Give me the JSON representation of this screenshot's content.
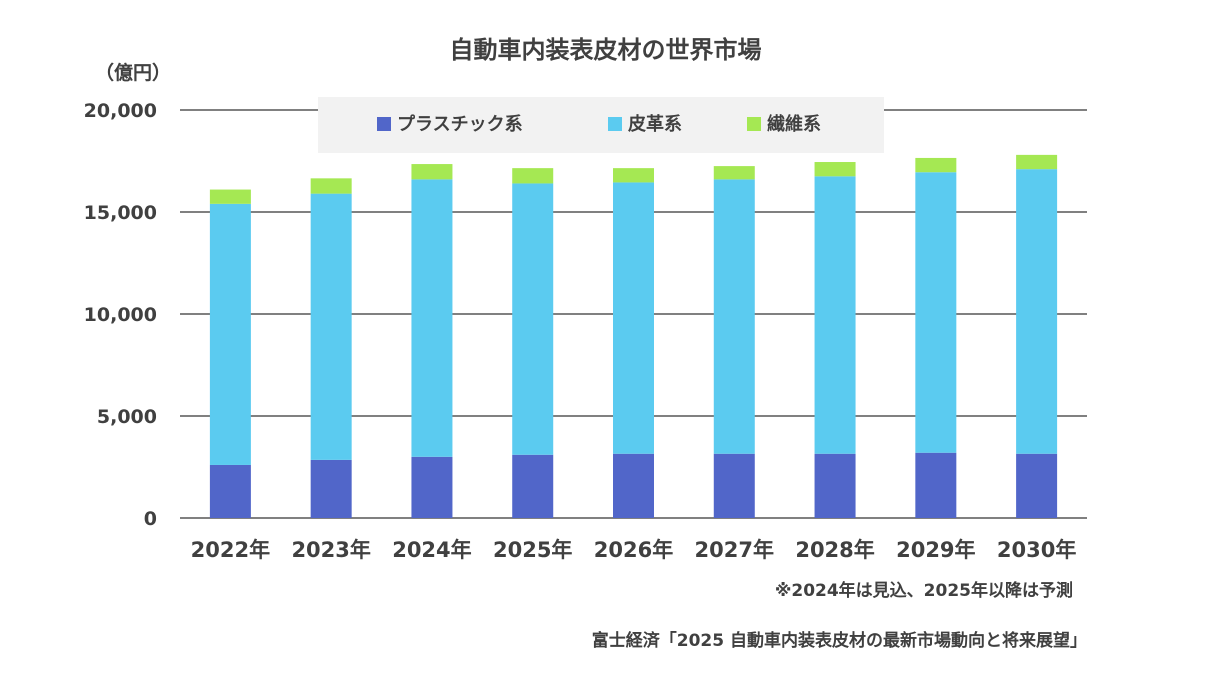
{
  "chart_data": {
    "type": "bar",
    "stacked": true,
    "title": "自動車内装表皮材の世界市場",
    "ylabel": "（億円）",
    "xlabel": "",
    "categories": [
      "2022年",
      "2023年",
      "2024年",
      "2025年",
      "2026年",
      "2027年",
      "2028年",
      "2029年",
      "2030年"
    ],
    "series": [
      {
        "name": "プラスチック系",
        "color": "#5166C9",
        "values": [
          2600,
          2850,
          3000,
          3100,
          3150,
          3150,
          3150,
          3200,
          3150
        ]
      },
      {
        "name": "皮革系",
        "color": "#5BCBF0",
        "values": [
          12800,
          13050,
          13600,
          13300,
          13300,
          13450,
          13600,
          13750,
          13950
        ]
      },
      {
        "name": "繊維系",
        "color": "#A5E853",
        "values": [
          700,
          750,
          750,
          750,
          700,
          650,
          700,
          700,
          700
        ]
      }
    ],
    "yticks": [
      "0",
      "5,000",
      "10,000",
      "15,000",
      "20,000"
    ],
    "ylim": [
      0,
      20000
    ],
    "grid": true,
    "legend": "top"
  },
  "note": "※2024年は見込、2025年以降は予測",
  "source": "富士経済「2025 自動車内装表皮材の最新市場動向と将来展望」"
}
